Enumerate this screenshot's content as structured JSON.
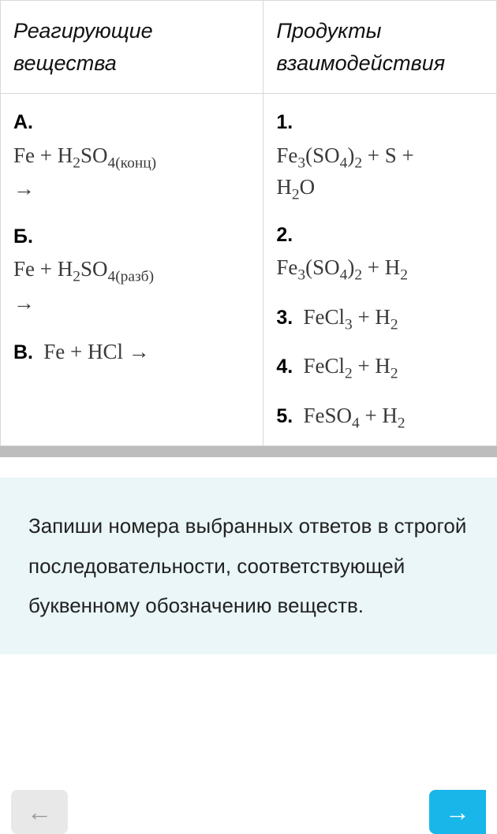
{
  "table": {
    "headers": {
      "left": "Реагирующие вещества",
      "right": "Продукты взаимодействия"
    },
    "left": {
      "a": {
        "label": "А.",
        "formula": "Fe + H₂SO₄",
        "suffix": "(конц)",
        "arrow": "→"
      },
      "b": {
        "label": "Б.",
        "formula": "Fe + H₂SO₄",
        "suffix": "(разб)",
        "arrow": "→"
      },
      "v": {
        "label": "В.",
        "formula": "Fe + HCl →"
      }
    },
    "right": {
      "r1": {
        "label": "1.",
        "line1": "Fe₃(SO₄)₂ + S +",
        "line2": "H₂O"
      },
      "r2": {
        "label": "2.",
        "line1": "Fe₃(SO₄)₂ + H₂"
      },
      "r3": {
        "label": "3.",
        "formula": "FeCl₃ + H₂"
      },
      "r4": {
        "label": "4.",
        "formula": "FeCl₂ + H₂"
      },
      "r5": {
        "label": "5.",
        "formula": "FeSO₄ + H₂"
      }
    }
  },
  "instruction": "Запиши номера выбранных ответов в строгой последовательности, соответствующей буквенному обозначению веществ.",
  "colors": {
    "border": "#d8d8d8",
    "instruction_bg": "#eaf6f8",
    "gray_band": "#bdbdbd",
    "next_btn": "#19b6e9",
    "back_btn": "#e8e8e8"
  }
}
